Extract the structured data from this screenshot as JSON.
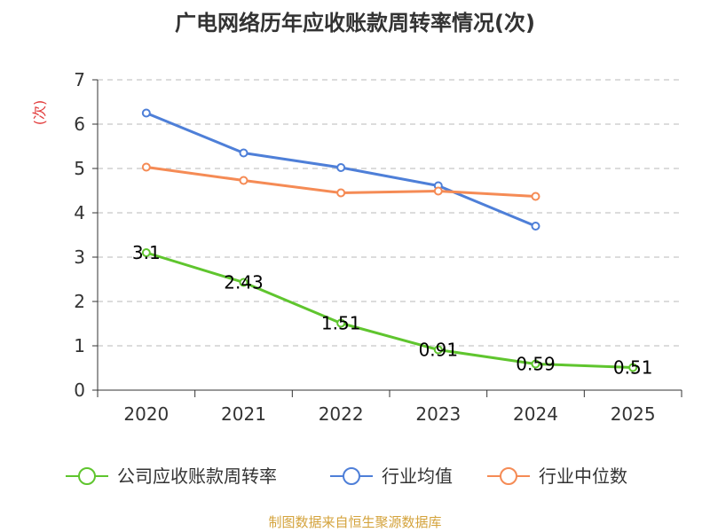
{
  "chart_data": {
    "type": "line",
    "title": "广电网络历年应收账款周转率情况(次)",
    "ylabel": "(次)",
    "xlabel": "",
    "categories": [
      "2020",
      "2021",
      "2022",
      "2023",
      "2024",
      "2025"
    ],
    "ylim": [
      0,
      7
    ],
    "yticks": [
      "0",
      "1",
      "2",
      "3",
      "4",
      "5",
      "6",
      "7"
    ],
    "grid": true,
    "legend_position": "bottom",
    "series": [
      {
        "name": "公司应收账款周转率",
        "color": "#5fc52e",
        "values": [
          3.1,
          2.43,
          1.51,
          0.91,
          0.59,
          0.51
        ],
        "labels": [
          "3.1",
          "2.43",
          "1.51",
          "0.91",
          "0.59",
          "0.51"
        ]
      },
      {
        "name": "行业均值",
        "color": "#4e7fd8",
        "values": [
          6.25,
          5.35,
          5.02,
          4.61,
          3.7,
          null
        ]
      },
      {
        "name": "行业中位数",
        "color": "#f58b55",
        "values": [
          5.03,
          4.73,
          4.45,
          4.49,
          4.37,
          null
        ]
      }
    ]
  },
  "source": "制图数据来自恒生聚源数据库",
  "colors": {
    "source_text": "#d4a33c",
    "ylabel_text": "#e23b3b"
  }
}
